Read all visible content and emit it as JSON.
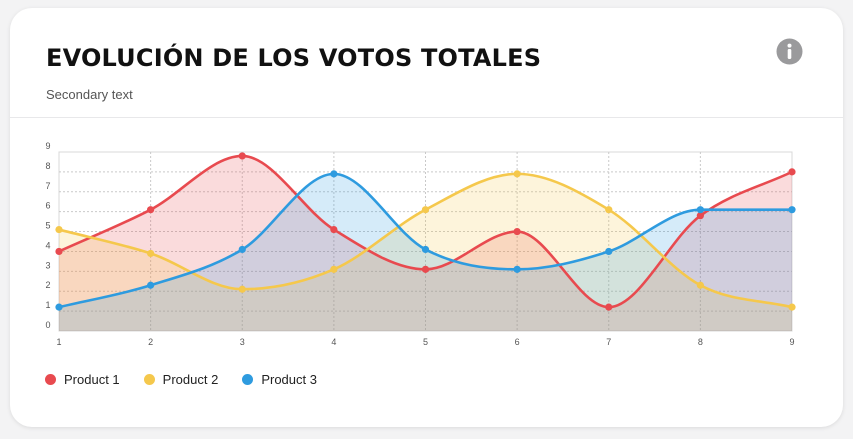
{
  "header": {
    "title": "EVOLUCIÓN DE LOS VOTOS TOTALES",
    "subtitle": "Secondary text",
    "info_icon": "info-circle-icon"
  },
  "chart_data": {
    "type": "area",
    "title": "EVOLUCIÓN DE LOS VOTOS TOTALES",
    "xlabel": "",
    "ylabel": "",
    "x": [
      1,
      2,
      3,
      4,
      5,
      6,
      7,
      8,
      9
    ],
    "xlim": [
      1,
      9
    ],
    "ylim": [
      0,
      9
    ],
    "x_ticks": [
      "1",
      "2",
      "3",
      "4",
      "5",
      "6",
      "7",
      "8",
      "9"
    ],
    "y_ticks": [
      "0",
      "1",
      "2",
      "3",
      "4",
      "5",
      "6",
      "7",
      "8",
      "9"
    ],
    "grid": true,
    "legend_position": "bottom-left",
    "series": [
      {
        "name": "Product 1",
        "color": "#e84a4f",
        "values": [
          4,
          6.1,
          8.8,
          5.1,
          3.1,
          5,
          1.2,
          5.8,
          8
        ]
      },
      {
        "name": "Product 2",
        "color": "#f5c84c",
        "values": [
          5.1,
          3.9,
          2.1,
          3.1,
          6.1,
          7.9,
          6.1,
          2.3,
          1.2
        ]
      },
      {
        "name": "Product 3",
        "color": "#2e9bdf",
        "values": [
          1.2,
          2.3,
          4.1,
          7.9,
          4.1,
          3.1,
          4,
          6.1,
          6.1
        ]
      }
    ]
  }
}
